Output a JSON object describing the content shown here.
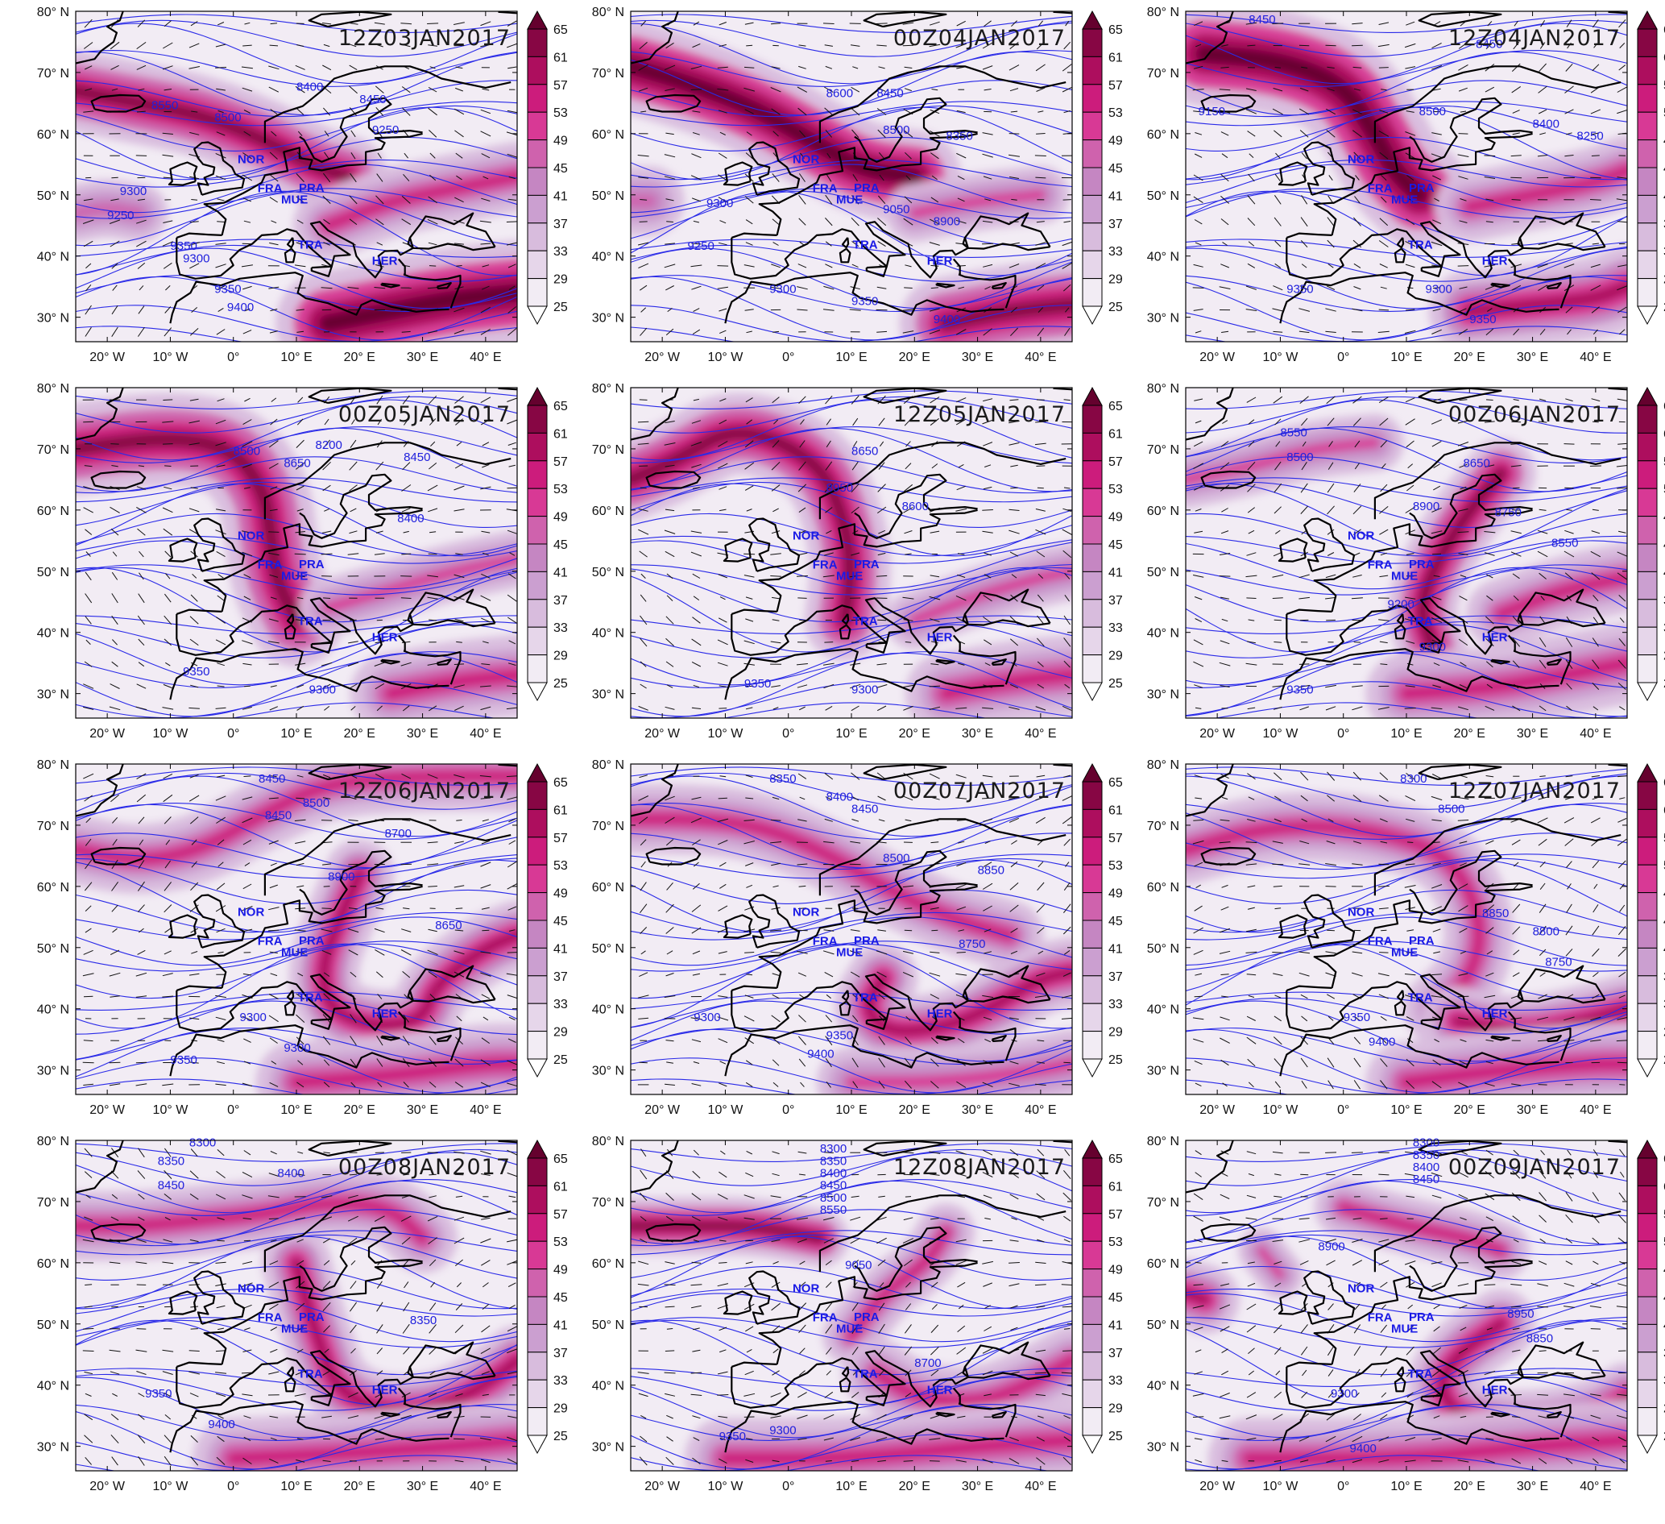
{
  "axes": {
    "lon_ticks": [
      "20° W",
      "10° W",
      "0°",
      "10° E",
      "20° E",
      "30° E",
      "40° E"
    ],
    "lat_ticks": [
      "80° N",
      "70° N",
      "60° N",
      "50° N",
      "40° N",
      "30° N"
    ]
  },
  "colorbar": {
    "labels": [
      "65",
      "61",
      "57",
      "53",
      "49",
      "45",
      "41",
      "37",
      "33",
      "29",
      "25"
    ],
    "colors": [
      "#ffffff",
      "#f2ecf4",
      "#e6d6ea",
      "#d8bcdd",
      "#cb9fd0",
      "#c586c2",
      "#cf62ad",
      "#d83995",
      "#cc1c7c",
      "#ad0e5e",
      "#870644",
      "#65012e"
    ]
  },
  "stations": [
    "NOR",
    "FRA",
    "PRA",
    "MUE",
    "TRA",
    "HER"
  ],
  "panels": [
    {
      "time": "12Z03JAN2017",
      "contours": [
        "8550",
        "8500",
        "8400",
        "8450",
        "9250",
        "9300",
        "9250",
        "9350",
        "9300",
        "9350",
        "9400"
      ]
    },
    {
      "time": "00Z04JAN2017",
      "contours": [
        "8600",
        "8450",
        "8500",
        "8350",
        "9300",
        "9250",
        "9050",
        "8900",
        "9300",
        "9350",
        "9400"
      ]
    },
    {
      "time": "12Z04JAN2017",
      "contours": [
        "8450",
        "8450",
        "9150",
        "8500",
        "8400",
        "8250",
        "9350",
        "9300",
        "9350"
      ]
    },
    {
      "time": "00Z05JAN2017",
      "contours": [
        "8500",
        "8650",
        "8200",
        "8450",
        "8400",
        "9350",
        "9300"
      ]
    },
    {
      "time": "12Z05JAN2017",
      "contours": [
        "8650",
        "8950",
        "8600",
        "9350",
        "9300"
      ]
    },
    {
      "time": "00Z06JAN2017",
      "contours": [
        "8550",
        "8500",
        "8650",
        "8900",
        "8750",
        "8550",
        "9200",
        "9300",
        "9350"
      ]
    },
    {
      "time": "12Z06JAN2017",
      "contours": [
        "8450",
        "8450",
        "8500",
        "8700",
        "8900",
        "8650",
        "9300",
        "9350",
        "9300"
      ]
    },
    {
      "time": "00Z07JAN2017",
      "contours": [
        "8350",
        "8400",
        "8450",
        "8850",
        "8500",
        "8750",
        "9300",
        "9350",
        "9400"
      ]
    },
    {
      "time": "12Z07JAN2017",
      "contours": [
        "8300",
        "8500",
        "8850",
        "8800",
        "8750",
        "9350",
        "9400"
      ]
    },
    {
      "time": "00Z08JAN2017",
      "contours": [
        "8300",
        "8350",
        "8400",
        "8450",
        "8350",
        "9350",
        "9400"
      ]
    },
    {
      "time": "12Z08JAN2017",
      "contours": [
        "8300",
        "8350",
        "8400",
        "8450",
        "8500",
        "8550",
        "9050",
        "8700",
        "9350",
        "9300"
      ]
    },
    {
      "time": "00Z09JAN2017",
      "contours": [
        "8300",
        "8350",
        "8400",
        "8450",
        "8900",
        "8950",
        "8850",
        "9300",
        "9400"
      ]
    }
  ]
}
